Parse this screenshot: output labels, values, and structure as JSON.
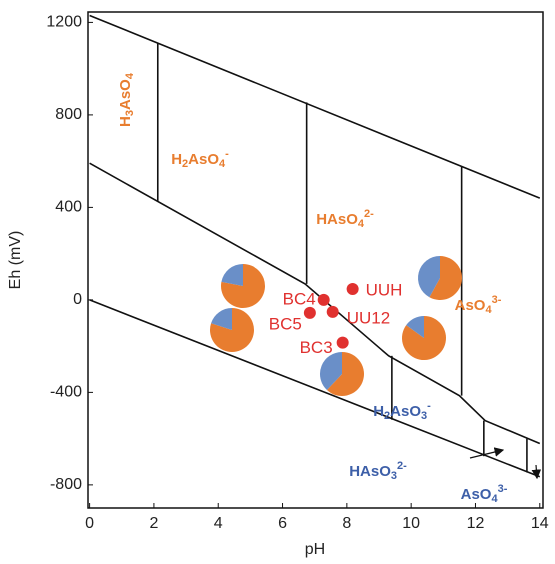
{
  "chart_data": {
    "type": "eh-ph",
    "x_label": "pH",
    "y_label": "Eh (mV)",
    "xlim": [
      -0.05,
      14.1
    ],
    "ylim": [
      -900,
      1245
    ],
    "xticks": [
      0,
      2,
      4,
      6,
      8,
      10,
      12,
      14
    ],
    "yticks": [
      -800,
      -400,
      0,
      400,
      800,
      1200
    ],
    "boundaries": [
      {
        "x": [
          0,
          14
        ],
        "y": [
          1230,
          440
        ]
      },
      {
        "x": [
          0,
          6.7,
          9.3,
          11.5,
          12.3,
          14
        ],
        "y": [
          591,
          69,
          -242,
          -414,
          -522,
          -621
        ]
      },
      {
        "x": [
          0,
          14
        ],
        "y": [
          0,
          -765
        ]
      },
      {
        "x": [
          2.12,
          2.12
        ],
        "y": [
          1110,
          426
        ]
      },
      {
        "x": [
          6.75,
          6.75
        ],
        "y": [
          854,
          69
        ]
      },
      {
        "x": [
          11.57,
          11.57
        ],
        "y": [
          577,
          -414
        ]
      },
      {
        "x": [
          9.4,
          9.4
        ],
        "y": [
          -242,
          -518
        ]
      },
      {
        "x": [
          12.26,
          12.26
        ],
        "y": [
          -522,
          -676
        ]
      },
      {
        "x": [
          13.6,
          13.6
        ],
        "y": [
          -600,
          -746
        ]
      }
    ],
    "line_color": "#111111",
    "species": [
      {
        "color": "#e87d2f",
        "parts": [
          {
            "t": "H"
          },
          {
            "t": "3",
            "s": "sub"
          },
          {
            "t": "AsO"
          },
          {
            "t": "4",
            "s": "sub"
          }
        ]
      },
      {
        "color": "#e87d2f",
        "parts": [
          {
            "t": "H"
          },
          {
            "t": "2",
            "s": "sub"
          },
          {
            "t": "AsO"
          },
          {
            "t": "4",
            "s": "sub"
          },
          {
            "t": "-",
            "s": "sup"
          }
        ]
      },
      {
        "color": "#e87d2f",
        "parts": [
          {
            "t": "HAsO"
          },
          {
            "t": "4",
            "s": "sub"
          },
          {
            "t": "2-",
            "s": "sup"
          }
        ]
      },
      {
        "color": "#e87d2f",
        "parts": [
          {
            "t": "AsO"
          },
          {
            "t": "4",
            "s": "sub"
          },
          {
            "t": "3-",
            "s": "sup"
          }
        ]
      },
      {
        "color": "#3d5fa8",
        "parts": [
          {
            "t": "H"
          },
          {
            "t": "2",
            "s": "sub"
          },
          {
            "t": "AsO"
          },
          {
            "t": "3",
            "s": "sub"
          },
          {
            "t": "-",
            "s": "sup"
          }
        ]
      },
      {
        "color": "#3d5fa8",
        "parts": [
          {
            "t": "HAsO"
          },
          {
            "t": "3",
            "s": "sub"
          },
          {
            "t": "2-",
            "s": "sup"
          }
        ]
      },
      {
        "color": "#3d5fa8",
        "parts": [
          {
            "t": "AsO"
          },
          {
            "t": "4",
            "s": "sub"
          },
          {
            "t": "3-",
            "s": "sup"
          }
        ]
      }
    ],
    "points": {
      "color": "#e0312f",
      "names": [
        "BC4",
        "BC5",
        "UU12",
        "BC3",
        "UUH"
      ],
      "x": [
        7.28,
        6.85,
        7.56,
        7.87,
        8.18
      ],
      "y": [
        0,
        -56,
        -52,
        -185,
        47
      ]
    },
    "pie_colors": [
      "#e87d2f",
      "#6a8fc8"
    ],
    "pies": [
      [
        78,
        22
      ],
      [
        80,
        20
      ],
      [
        62,
        38
      ],
      [
        58,
        42
      ],
      [
        85,
        15
      ]
    ]
  }
}
